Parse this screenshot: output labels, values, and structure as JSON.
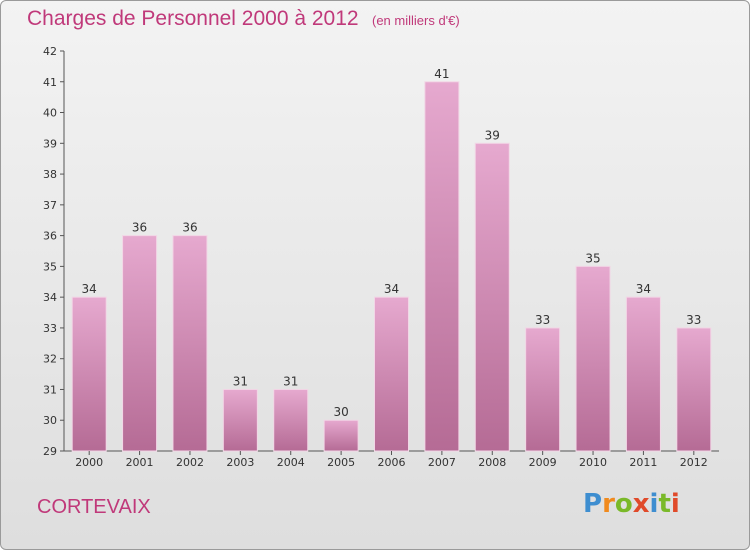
{
  "header": {
    "title": "Charges de Personnel 2000 à 2012",
    "unit_note": "(en milliers d'€)"
  },
  "footer": {
    "commune": "CORTEVAIX",
    "logo_text": "Proxiti"
  },
  "colors": {
    "accent": "#c0397a",
    "bar_light": "#e6a9cf",
    "bar_dark": "#b56b95",
    "logo_letters": [
      "#3e8ed0",
      "#f08a1e",
      "#7ab929",
      "#e04a2a",
      "#3e8ed0",
      "#7ab929",
      "#e04a2a"
    ]
  },
  "chart_data": {
    "type": "bar",
    "title": "Charges de Personnel 2000 à 2012",
    "subtitle": "(en milliers d'€)",
    "xlabel": "",
    "ylabel": "",
    "categories": [
      "2000",
      "2001",
      "2002",
      "2003",
      "2004",
      "2005",
      "2006",
      "2007",
      "2008",
      "2009",
      "2010",
      "2011",
      "2012"
    ],
    "values": [
      34,
      36,
      36,
      31,
      31,
      30,
      34,
      41,
      39,
      33,
      35,
      34,
      33
    ],
    "ylim": [
      29,
      42
    ],
    "yticks": [
      29,
      30,
      31,
      32,
      33,
      34,
      35,
      36,
      37,
      38,
      39,
      40,
      41,
      42
    ],
    "grid": false,
    "data_labels": true
  }
}
